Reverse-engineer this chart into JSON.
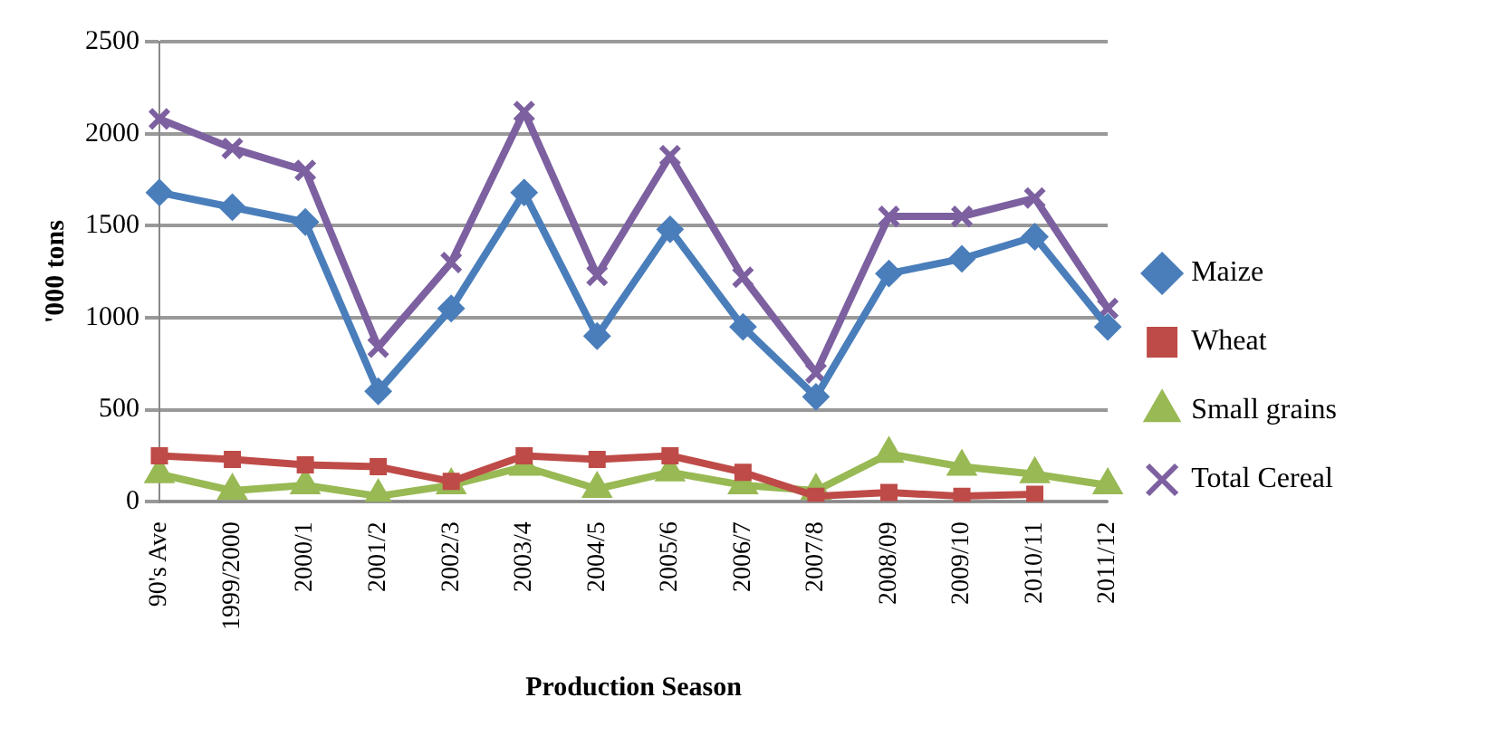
{
  "chart_data": {
    "type": "line",
    "xlabel": "Production Season",
    "ylabel": "'000 tons",
    "categories": [
      "90's Ave",
      "1999/2000",
      "2000/1",
      "2001/2",
      "2002/3",
      "2003/4",
      "2004/5",
      "2005/6",
      "2006/7",
      "2007/8",
      "2008/09",
      "2009/10",
      "2010/11",
      "2011/12"
    ],
    "series": [
      {
        "name": "Maize",
        "color": "#4a7ebb",
        "marker": "diamond",
        "values": [
          1680,
          1600,
          1520,
          600,
          1050,
          1680,
          900,
          1480,
          950,
          570,
          1240,
          1320,
          1440,
          950
        ]
      },
      {
        "name": "Wheat",
        "color": "#be4b48",
        "marker": "square",
        "values": [
          250,
          230,
          200,
          190,
          110,
          250,
          230,
          250,
          160,
          30,
          50,
          30,
          40,
          null
        ]
      },
      {
        "name": "Small grains",
        "color": "#98b954",
        "marker": "triangle",
        "values": [
          150,
          60,
          90,
          30,
          90,
          190,
          70,
          160,
          90,
          60,
          260,
          190,
          150,
          90
        ]
      },
      {
        "name": "Total Cereal",
        "color": "#7d60a0",
        "marker": "cross",
        "values": [
          2080,
          1920,
          1800,
          840,
          1300,
          2120,
          1230,
          1880,
          1220,
          700,
          1550,
          1550,
          1650,
          1050
        ]
      }
    ],
    "ylim": [
      0,
      2500
    ],
    "yticks": [
      0,
      500,
      1000,
      1500,
      2000,
      2500
    ],
    "grid": "y",
    "legend": "right"
  }
}
